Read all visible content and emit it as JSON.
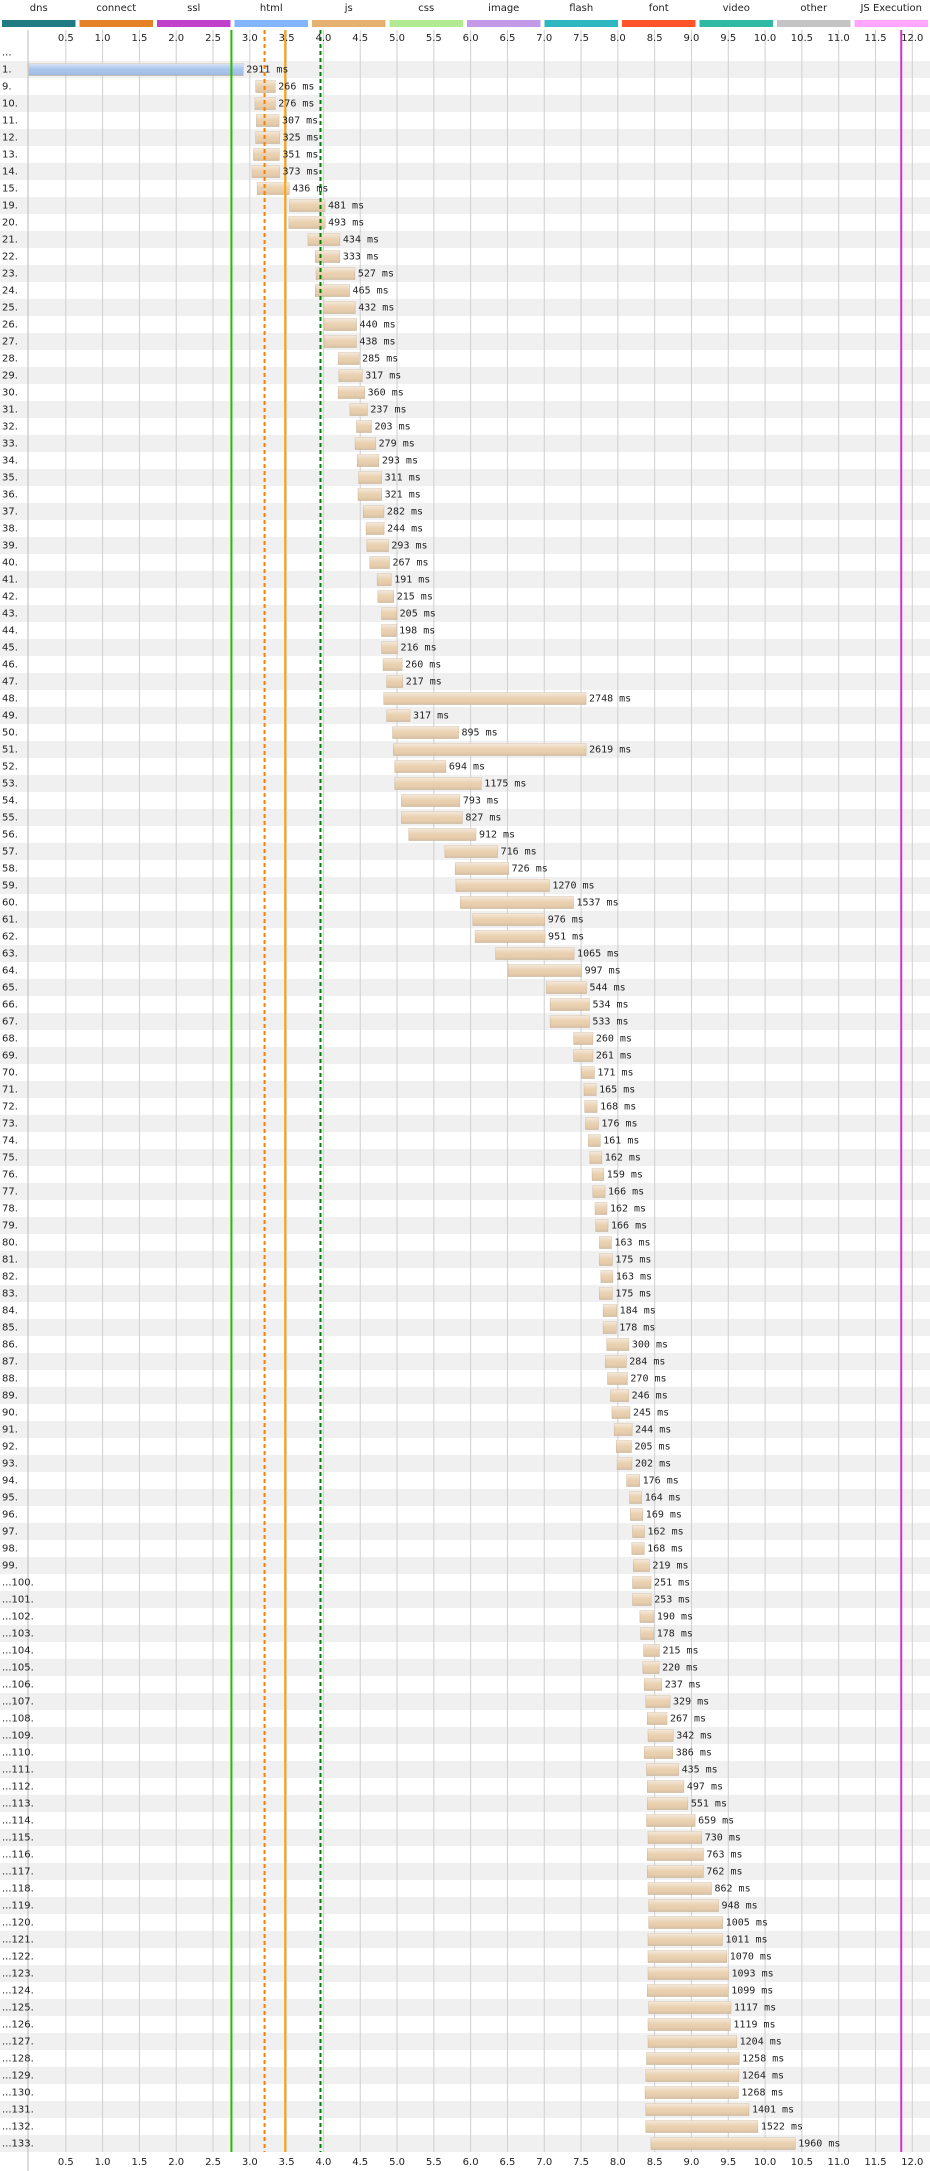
{
  "chart_data": {
    "type": "waterfall",
    "legend": [
      {
        "name": "dns",
        "color": "#1f7c83"
      },
      {
        "name": "connect",
        "color": "#e58226"
      },
      {
        "name": "ssl",
        "color": "#c141cd"
      },
      {
        "name": "html",
        "color": "#82b5fc"
      },
      {
        "name": "js",
        "color": "#e5b171"
      },
      {
        "name": "css",
        "color": "#b2ea94"
      },
      {
        "name": "image",
        "color": "#c49ae8"
      },
      {
        "name": "flash",
        "color": "#2db7c1"
      },
      {
        "name": "font",
        "color": "#ff5329"
      },
      {
        "name": "video",
        "color": "#2eb9a3"
      },
      {
        "name": "other",
        "color": "#c4c4c4"
      },
      {
        "name": "JS Execution",
        "color": "#ffa6ff"
      }
    ],
    "xlim": [
      0,
      12.2
    ],
    "xticks": [
      0.5,
      {
        "value": 1,
        "label": "1.0"
      },
      1.5,
      {
        "value": 2,
        "label": "2.0"
      },
      2.5,
      {
        "value": 3,
        "label": "3.0"
      },
      3.5,
      {
        "value": 4,
        "label": "4.0"
      },
      4.5,
      {
        "value": 5,
        "label": "5.0"
      },
      5.5,
      {
        "value": 6,
        "label": "6.0"
      },
      6.5,
      {
        "value": 7,
        "label": "7.0"
      },
      7.5,
      {
        "value": 8,
        "label": "8.0"
      },
      8.5,
      {
        "value": 9,
        "label": "9.0"
      },
      9.5,
      {
        "value": 10,
        "label": "10.0"
      },
      10.5,
      {
        "value": 11,
        "label": "11.0"
      },
      11.5,
      {
        "value": 12,
        "label": "12.0"
      }
    ],
    "grid": true,
    "bar_color": "#e9cfae",
    "markers": [
      {
        "time": 2.75,
        "color": "#28bc00",
        "dashed": false
      },
      {
        "time": 3.2,
        "color": "#ff7f00",
        "dashed": true
      },
      {
        "time": 3.48,
        "color": "#ffa500",
        "dashed": false
      },
      {
        "time": 3.96,
        "color": "#008000",
        "dashed": true
      },
      {
        "time": 11.85,
        "color": "#cc33cc",
        "dashed": false
      }
    ],
    "rows": [
      {
        "label": "..."
      },
      {
        "label": "1.",
        "start": 0.0,
        "duration": 2911,
        "duration_label": "2911 ms",
        "color": "#a8c4ec"
      },
      {
        "label": "9.",
        "start": 3.08,
        "duration": 266,
        "duration_label": "266 ms"
      },
      {
        "label": "10.",
        "start": 3.07,
        "duration": 276,
        "duration_label": "276 ms"
      },
      {
        "label": "11.",
        "start": 3.09,
        "duration": 307,
        "duration_label": "307 ms"
      },
      {
        "label": "12.",
        "start": 3.08,
        "duration": 325,
        "duration_label": "325 ms"
      },
      {
        "label": "13.",
        "start": 3.05,
        "duration": 351,
        "duration_label": "351 ms"
      },
      {
        "label": "14.",
        "start": 3.03,
        "duration": 373,
        "duration_label": "373 ms"
      },
      {
        "label": "15.",
        "start": 3.1,
        "duration": 436,
        "duration_label": "436 ms"
      },
      {
        "label": "19.",
        "start": 3.54,
        "duration": 481,
        "duration_label": "481 ms"
      },
      {
        "label": "20.",
        "start": 3.53,
        "duration": 493,
        "duration_label": "493 ms"
      },
      {
        "label": "21.",
        "start": 3.79,
        "duration": 434,
        "duration_label": "434 ms"
      },
      {
        "label": "22.",
        "start": 3.89,
        "duration": 333,
        "duration_label": "333 ms"
      },
      {
        "label": "23.",
        "start": 3.9,
        "duration": 527,
        "duration_label": "527 ms"
      },
      {
        "label": "24.",
        "start": 3.89,
        "duration": 465,
        "duration_label": "465 ms"
      },
      {
        "label": "25.",
        "start": 4.0,
        "duration": 432,
        "duration_label": "432 ms"
      },
      {
        "label": "26.",
        "start": 4.01,
        "duration": 440,
        "duration_label": "440 ms"
      },
      {
        "label": "27.",
        "start": 4.01,
        "duration": 438,
        "duration_label": "438 ms"
      },
      {
        "label": "28.",
        "start": 4.2,
        "duration": 285,
        "duration_label": "285 ms"
      },
      {
        "label": "29.",
        "start": 4.21,
        "duration": 317,
        "duration_label": "317 ms"
      },
      {
        "label": "30.",
        "start": 4.2,
        "duration": 360,
        "duration_label": "360 ms"
      },
      {
        "label": "31.",
        "start": 4.36,
        "duration": 237,
        "duration_label": "237 ms"
      },
      {
        "label": "32.",
        "start": 4.45,
        "duration": 203,
        "duration_label": "203 ms"
      },
      {
        "label": "33.",
        "start": 4.43,
        "duration": 279,
        "duration_label": "279 ms"
      },
      {
        "label": "34.",
        "start": 4.46,
        "duration": 293,
        "duration_label": "293 ms"
      },
      {
        "label": "35.",
        "start": 4.48,
        "duration": 311,
        "duration_label": "311 ms"
      },
      {
        "label": "36.",
        "start": 4.47,
        "duration": 321,
        "duration_label": "321 ms"
      },
      {
        "label": "37.",
        "start": 4.54,
        "duration": 282,
        "duration_label": "282 ms"
      },
      {
        "label": "38.",
        "start": 4.58,
        "duration": 244,
        "duration_label": "244 ms"
      },
      {
        "label": "39.",
        "start": 4.59,
        "duration": 293,
        "duration_label": "293 ms"
      },
      {
        "label": "40.",
        "start": 4.63,
        "duration": 267,
        "duration_label": "267 ms"
      },
      {
        "label": "41.",
        "start": 4.73,
        "duration": 191,
        "duration_label": "191 ms"
      },
      {
        "label": "42.",
        "start": 4.74,
        "duration": 215,
        "duration_label": "215 ms"
      },
      {
        "label": "43.",
        "start": 4.79,
        "duration": 205,
        "duration_label": "205 ms"
      },
      {
        "label": "44.",
        "start": 4.79,
        "duration": 198,
        "duration_label": "198 ms"
      },
      {
        "label": "45.",
        "start": 4.79,
        "duration": 216,
        "duration_label": "216 ms"
      },
      {
        "label": "46.",
        "start": 4.81,
        "duration": 260,
        "duration_label": "260 ms"
      },
      {
        "label": "47.",
        "start": 4.86,
        "duration": 217,
        "duration_label": "217 ms"
      },
      {
        "label": "48.",
        "start": 4.82,
        "duration": 2748,
        "duration_label": "2748 ms"
      },
      {
        "label": "49.",
        "start": 4.86,
        "duration": 317,
        "duration_label": "317 ms"
      },
      {
        "label": "50.",
        "start": 4.94,
        "duration": 895,
        "duration_label": "895 ms"
      },
      {
        "label": "51.",
        "start": 4.95,
        "duration": 2619,
        "duration_label": "2619 ms"
      },
      {
        "label": "52.",
        "start": 4.97,
        "duration": 694,
        "duration_label": "694 ms"
      },
      {
        "label": "53.",
        "start": 4.97,
        "duration": 1175,
        "duration_label": "1175 ms"
      },
      {
        "label": "54.",
        "start": 5.06,
        "duration": 793,
        "duration_label": "793 ms"
      },
      {
        "label": "55.",
        "start": 5.06,
        "duration": 827,
        "duration_label": "827 ms"
      },
      {
        "label": "56.",
        "start": 5.16,
        "duration": 912,
        "duration_label": "912 ms"
      },
      {
        "label": "57.",
        "start": 5.65,
        "duration": 716,
        "duration_label": "716 ms"
      },
      {
        "label": "58.",
        "start": 5.79,
        "duration": 726,
        "duration_label": "726 ms"
      },
      {
        "label": "59.",
        "start": 5.8,
        "duration": 1270,
        "duration_label": "1270 ms"
      },
      {
        "label": "60.",
        "start": 5.86,
        "duration": 1537,
        "duration_label": "1537 ms"
      },
      {
        "label": "61.",
        "start": 6.03,
        "duration": 976,
        "duration_label": "976 ms"
      },
      {
        "label": "62.",
        "start": 6.06,
        "duration": 951,
        "duration_label": "951 ms"
      },
      {
        "label": "63.",
        "start": 6.34,
        "duration": 1065,
        "duration_label": "1065 ms"
      },
      {
        "label": "64.",
        "start": 6.51,
        "duration": 997,
        "duration_label": "997 ms"
      },
      {
        "label": "65.",
        "start": 7.03,
        "duration": 544,
        "duration_label": "544 ms"
      },
      {
        "label": "66.",
        "start": 7.08,
        "duration": 534,
        "duration_label": "534 ms"
      },
      {
        "label": "67.",
        "start": 7.08,
        "duration": 533,
        "duration_label": "533 ms"
      },
      {
        "label": "68.",
        "start": 7.4,
        "duration": 260,
        "duration_label": "260 ms"
      },
      {
        "label": "69.",
        "start": 7.4,
        "duration": 261,
        "duration_label": "261 ms"
      },
      {
        "label": "70.",
        "start": 7.51,
        "duration": 171,
        "duration_label": "171 ms"
      },
      {
        "label": "71.",
        "start": 7.54,
        "duration": 165,
        "duration_label": "165 ms"
      },
      {
        "label": "72.",
        "start": 7.55,
        "duration": 168,
        "duration_label": "168 ms"
      },
      {
        "label": "73.",
        "start": 7.56,
        "duration": 176,
        "duration_label": "176 ms"
      },
      {
        "label": "74.",
        "start": 7.6,
        "duration": 161,
        "duration_label": "161 ms"
      },
      {
        "label": "75.",
        "start": 7.62,
        "duration": 162,
        "duration_label": "162 ms"
      },
      {
        "label": "76.",
        "start": 7.65,
        "duration": 159,
        "duration_label": "159 ms"
      },
      {
        "label": "77.",
        "start": 7.66,
        "duration": 166,
        "duration_label": "166 ms"
      },
      {
        "label": "78.",
        "start": 7.69,
        "duration": 162,
        "duration_label": "162 ms"
      },
      {
        "label": "79.",
        "start": 7.7,
        "duration": 166,
        "duration_label": "166 ms"
      },
      {
        "label": "80.",
        "start": 7.75,
        "duration": 163,
        "duration_label": "163 ms"
      },
      {
        "label": "81.",
        "start": 7.75,
        "duration": 175,
        "duration_label": "175 ms"
      },
      {
        "label": "82.",
        "start": 7.77,
        "duration": 163,
        "duration_label": "163 ms"
      },
      {
        "label": "83.",
        "start": 7.75,
        "duration": 175,
        "duration_label": "175 ms"
      },
      {
        "label": "84.",
        "start": 7.8,
        "duration": 184,
        "duration_label": "184 ms"
      },
      {
        "label": "85.",
        "start": 7.8,
        "duration": 178,
        "duration_label": "178 ms"
      },
      {
        "label": "86.",
        "start": 7.85,
        "duration": 300,
        "duration_label": "300 ms"
      },
      {
        "label": "87.",
        "start": 7.83,
        "duration": 284,
        "duration_label": "284 ms"
      },
      {
        "label": "88.",
        "start": 7.86,
        "duration": 270,
        "duration_label": "270 ms"
      },
      {
        "label": "89.",
        "start": 7.9,
        "duration": 246,
        "duration_label": "246 ms"
      },
      {
        "label": "90.",
        "start": 7.92,
        "duration": 245,
        "duration_label": "245 ms"
      },
      {
        "label": "91.",
        "start": 7.95,
        "duration": 244,
        "duration_label": "244 ms"
      },
      {
        "label": "92.",
        "start": 7.98,
        "duration": 205,
        "duration_label": "205 ms"
      },
      {
        "label": "93.",
        "start": 7.99,
        "duration": 202,
        "duration_label": "202 ms"
      },
      {
        "label": "94.",
        "start": 8.12,
        "duration": 176,
        "duration_label": "176 ms"
      },
      {
        "label": "95.",
        "start": 8.16,
        "duration": 164,
        "duration_label": "164 ms"
      },
      {
        "label": "96.",
        "start": 8.17,
        "duration": 169,
        "duration_label": "169 ms"
      },
      {
        "label": "97.",
        "start": 8.2,
        "duration": 162,
        "duration_label": "162 ms"
      },
      {
        "label": "98.",
        "start": 8.19,
        "duration": 168,
        "duration_label": "168 ms"
      },
      {
        "label": "99.",
        "start": 8.21,
        "duration": 219,
        "duration_label": "219 ms"
      },
      {
        "label": "...100.",
        "start": 8.2,
        "duration": 251,
        "duration_label": "251 ms"
      },
      {
        "label": "...101.",
        "start": 8.2,
        "duration": 253,
        "duration_label": "253 ms"
      },
      {
        "label": "...102.",
        "start": 8.3,
        "duration": 190,
        "duration_label": "190 ms"
      },
      {
        "label": "...103.",
        "start": 8.31,
        "duration": 178,
        "duration_label": "178 ms"
      },
      {
        "label": "...104.",
        "start": 8.35,
        "duration": 215,
        "duration_label": "215 ms"
      },
      {
        "label": "...105.",
        "start": 8.34,
        "duration": 220,
        "duration_label": "220 ms"
      },
      {
        "label": "...106.",
        "start": 8.36,
        "duration": 237,
        "duration_label": "237 ms"
      },
      {
        "label": "...107.",
        "start": 8.38,
        "duration": 329,
        "duration_label": "329 ms"
      },
      {
        "label": "...108.",
        "start": 8.4,
        "duration": 267,
        "duration_label": "267 ms"
      },
      {
        "label": "...109.",
        "start": 8.41,
        "duration": 342,
        "duration_label": "342 ms"
      },
      {
        "label": "...110.",
        "start": 8.36,
        "duration": 386,
        "duration_label": "386 ms"
      },
      {
        "label": "...111.",
        "start": 8.39,
        "duration": 435,
        "duration_label": "435 ms"
      },
      {
        "label": "...112.",
        "start": 8.4,
        "duration": 497,
        "duration_label": "497 ms"
      },
      {
        "label": "...113.",
        "start": 8.4,
        "duration": 551,
        "duration_label": "551 ms"
      },
      {
        "label": "...114.",
        "start": 8.39,
        "duration": 659,
        "duration_label": "659 ms"
      },
      {
        "label": "...115.",
        "start": 8.41,
        "duration": 730,
        "duration_label": "730 ms"
      },
      {
        "label": "...116.",
        "start": 8.4,
        "duration": 763,
        "duration_label": "763 ms"
      },
      {
        "label": "...117.",
        "start": 8.4,
        "duration": 762,
        "duration_label": "762 ms"
      },
      {
        "label": "...118.",
        "start": 8.41,
        "duration": 862,
        "duration_label": "862 ms"
      },
      {
        "label": "...119.",
        "start": 8.42,
        "duration": 948,
        "duration_label": "948 ms"
      },
      {
        "label": "...120.",
        "start": 8.42,
        "duration": 1005,
        "duration_label": "1005 ms"
      },
      {
        "label": "...121.",
        "start": 8.41,
        "duration": 1011,
        "duration_label": "1011 ms"
      },
      {
        "label": "...122.",
        "start": 8.41,
        "duration": 1070,
        "duration_label": "1070 ms"
      },
      {
        "label": "...123.",
        "start": 8.41,
        "duration": 1093,
        "duration_label": "1093 ms"
      },
      {
        "label": "...124.",
        "start": 8.4,
        "duration": 1099,
        "duration_label": "1099 ms"
      },
      {
        "label": "...125.",
        "start": 8.42,
        "duration": 1117,
        "duration_label": "1117 ms"
      },
      {
        "label": "...126.",
        "start": 8.41,
        "duration": 1119,
        "duration_label": "1119 ms"
      },
      {
        "label": "...127.",
        "start": 8.41,
        "duration": 1204,
        "duration_label": "1204 ms"
      },
      {
        "label": "...128.",
        "start": 8.39,
        "duration": 1258,
        "duration_label": "1258 ms"
      },
      {
        "label": "...129.",
        "start": 8.38,
        "duration": 1264,
        "duration_label": "1264 ms"
      },
      {
        "label": "...130.",
        "start": 8.37,
        "duration": 1268,
        "duration_label": "1268 ms"
      },
      {
        "label": "...131.",
        "start": 8.38,
        "duration": 1401,
        "duration_label": "1401 ms"
      },
      {
        "label": "...132.",
        "start": 8.38,
        "duration": 1522,
        "duration_label": "1522 ms"
      },
      {
        "label": "...133.",
        "start": 8.45,
        "duration": 1960,
        "duration_label": "1960 ms"
      }
    ]
  }
}
